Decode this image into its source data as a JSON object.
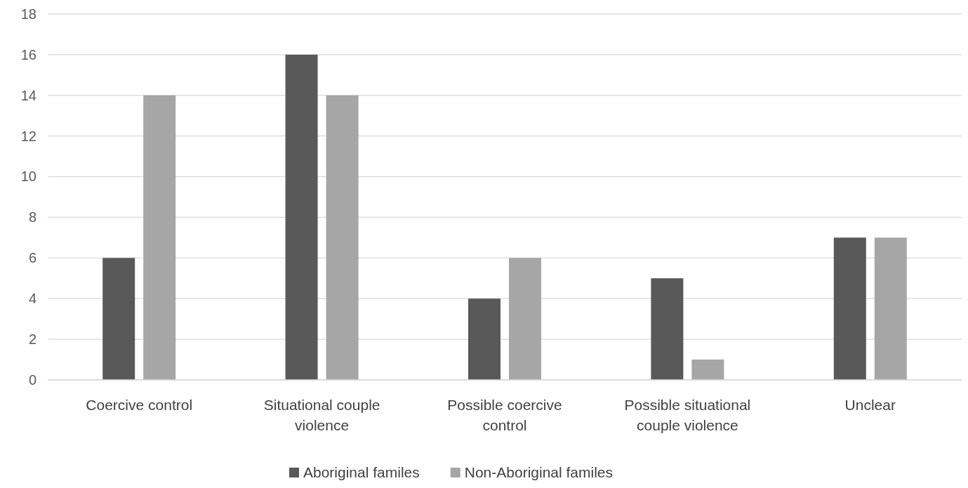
{
  "chart_data": {
    "type": "bar",
    "categories": [
      "Coercive control",
      "Situational couple violence",
      "Possible coercive control",
      "Possible situational couple violence",
      "Unclear"
    ],
    "series": [
      {
        "name": "Aboriginal familes",
        "color": "#595959",
        "values": [
          6,
          16,
          4,
          5,
          7
        ]
      },
      {
        "name": "Non-Aboriginal familes",
        "color": "#a6a6a6",
        "values": [
          14,
          14,
          6,
          1,
          7
        ]
      }
    ],
    "ylim": [
      0,
      18
    ],
    "yticks": [
      0,
      2,
      4,
      6,
      8,
      10,
      12,
      14,
      16,
      18
    ],
    "grid": "y",
    "legend": "bottom"
  }
}
